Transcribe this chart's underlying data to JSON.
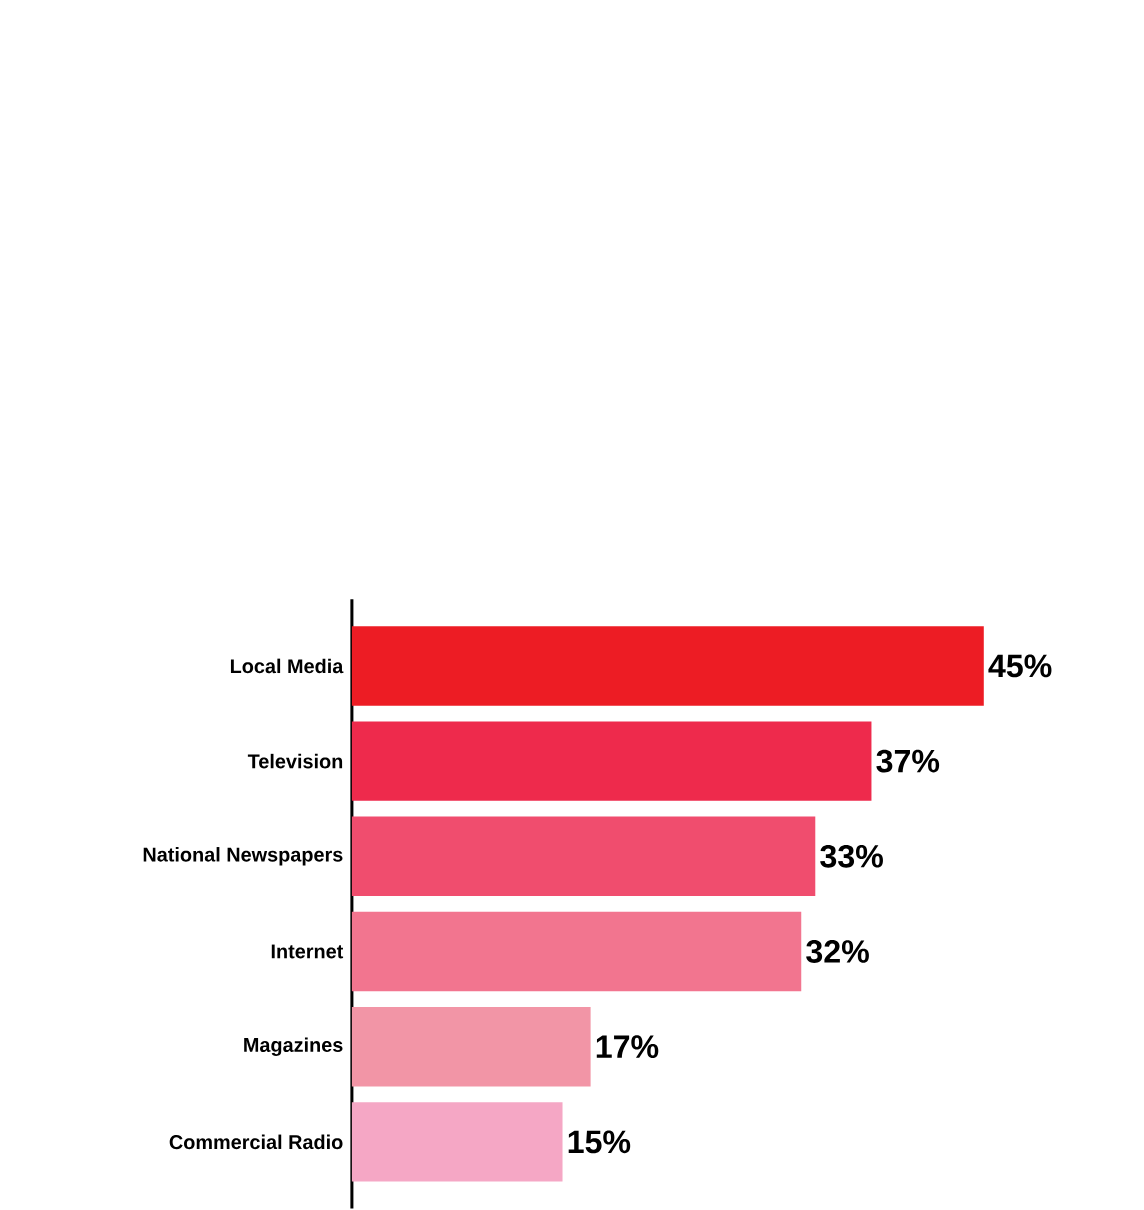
{
  "chart_data": {
    "type": "bar",
    "orientation": "horizontal",
    "categories": [
      "Local Media",
      "Television",
      "National Newspapers",
      "Internet",
      "Magazines",
      "Commercial Radio"
    ],
    "values": [
      45,
      37,
      33,
      32,
      17,
      15
    ],
    "value_labels": [
      "45%",
      "37%",
      "33%",
      "32%",
      "17%",
      "15%"
    ],
    "colors": [
      "#ed1c24",
      "#ee2a4c",
      "#f04d6e",
      "#f2758f",
      "#f295a6",
      "#f5a7c5"
    ]
  }
}
